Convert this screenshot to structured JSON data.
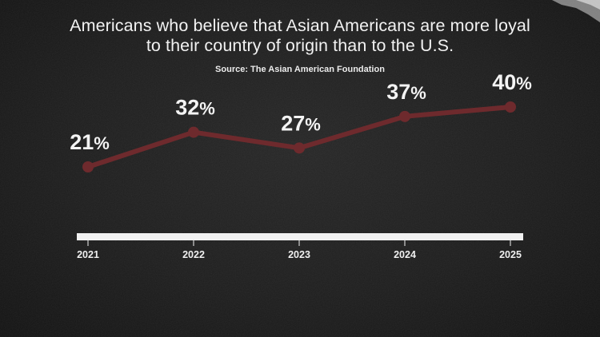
{
  "chart_data": {
    "type": "line",
    "title_lines": [
      "Americans who believe that Asian Americans are more loyal",
      "to their country of origin than to the U.S."
    ],
    "source": "Source: The Asian American Foundation",
    "categories": [
      "2021",
      "2022",
      "2023",
      "2024",
      "2025"
    ],
    "series": [
      {
        "values": [
          21,
          32,
          27,
          37,
          40
        ],
        "labels": [
          "21%",
          "32%",
          "27%",
          "37%",
          "40%"
        ],
        "color": "#6e2a2d"
      }
    ],
    "xlabel": "",
    "ylabel": "",
    "ylim": [
      10,
      45
    ],
    "grid": false,
    "legend": "none"
  },
  "colors": {
    "background": "#1d1d1d",
    "text": "#f2f2f2",
    "axis_bar": "#f1f1f1",
    "line": "#6e2a2d"
  }
}
